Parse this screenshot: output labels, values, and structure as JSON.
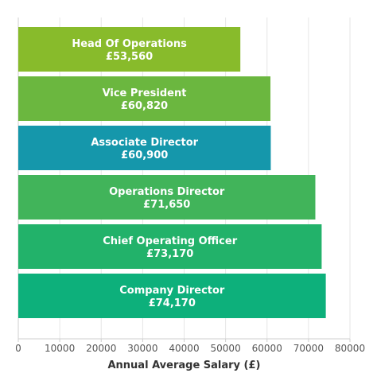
{
  "chart_data": {
    "type": "bar",
    "orientation": "horizontal",
    "categories": [
      "Head Of Operations",
      "Vice President",
      "Associate Director",
      "Operations Director",
      "Chief Operating Officer",
      "Company Director"
    ],
    "values": [
      53560,
      60820,
      60900,
      71650,
      73170,
      74170
    ],
    "value_labels": [
      "£53,560",
      "£60,820",
      "£60,900",
      "£71,650",
      "£73,170",
      "£74,170"
    ],
    "colors": [
      "#88bb2b",
      "#6bb73f",
      "#1597ab",
      "#41b45a",
      "#22b26a",
      "#0db07b"
    ],
    "xlabel": "Annual Average Salary (£)",
    "xlim": [
      0,
      80000
    ],
    "xticks": [
      0,
      10000,
      20000,
      30000,
      40000,
      50000,
      60000,
      70000,
      80000
    ],
    "xtick_labels": [
      "0",
      "10000",
      "20000",
      "30000",
      "40000",
      "50000",
      "60000",
      "70000",
      "80000"
    ],
    "grid": true,
    "legend": "none"
  }
}
